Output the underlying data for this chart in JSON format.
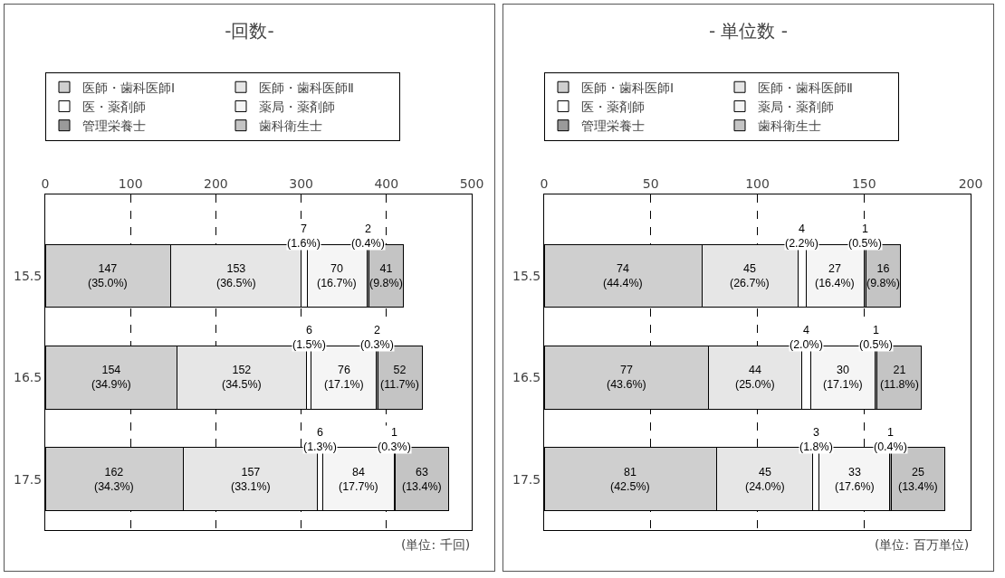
{
  "chart_data": [
    {
      "type": "bar",
      "orientation": "horizontal",
      "stacked": true,
      "title": "-回数-",
      "categories": [
        "15.5",
        "16.5",
        "17.5"
      ],
      "series": [
        {
          "name": "医師・歯科医師Ⅰ",
          "color": "#cfcfcf",
          "values": [
            147,
            154,
            162
          ],
          "value_labels": [
            "147\n(35.0%)",
            "154\n(34.9%)",
            "162\n(34.3%)"
          ]
        },
        {
          "name": "医師・歯科医師Ⅱ",
          "color": "#e6e6e6",
          "values": [
            153,
            152,
            157
          ],
          "value_labels": [
            "153\n(36.5%)",
            "152\n(34.5%)",
            "157\n(33.1%)"
          ]
        },
        {
          "name": "医・薬剤師",
          "color": "#ffffff",
          "values": [
            7,
            6,
            6
          ],
          "value_labels": [
            "7\n(1.6%)",
            "6\n(1.5%)",
            "6\n(1.3%)"
          ]
        },
        {
          "name": "薬局・薬剤師",
          "color": "#f5f5f5",
          "values": [
            70,
            76,
            84
          ],
          "value_labels": [
            "70\n(16.7%)",
            "76\n(17.1%)",
            "84\n(17.7%)"
          ]
        },
        {
          "name": "管理栄養士",
          "color": "#9a9a9a",
          "values": [
            2,
            2,
            1
          ],
          "value_labels": [
            "2\n(0.4%)",
            "2\n(0.3%)",
            "1\n(0.3%)"
          ]
        },
        {
          "name": "歯科衛生士",
          "color": "#c4c4c4",
          "values": [
            41,
            52,
            63
          ],
          "value_labels": [
            "41\n(9.8%)",
            "52\n(11.7%)",
            "63\n(13.4%)"
          ]
        }
      ],
      "xlim": [
        0,
        500
      ],
      "xticks": [
        0,
        100,
        200,
        300,
        400,
        500
      ],
      "grid": "x",
      "legend": "top",
      "annotations": [
        "(単位: 千回)"
      ]
    },
    {
      "type": "bar",
      "orientation": "horizontal",
      "stacked": true,
      "title": "- 単位数 -",
      "categories": [
        "15.5",
        "16.5",
        "17.5"
      ],
      "series": [
        {
          "name": "医師・歯科医師Ⅰ",
          "color": "#cfcfcf",
          "values": [
            74,
            77,
            81
          ],
          "value_labels": [
            "74\n(44.4%)",
            "77\n(43.6%)",
            "81\n(42.5%)"
          ]
        },
        {
          "name": "医師・歯科医師Ⅱ",
          "color": "#e6e6e6",
          "values": [
            45,
            44,
            45
          ],
          "value_labels": [
            "45\n(26.7%)",
            "44\n(25.0%)",
            "45\n(24.0%)"
          ]
        },
        {
          "name": "医・薬剤師",
          "color": "#ffffff",
          "values": [
            4,
            4,
            3
          ],
          "value_labels": [
            "4\n(2.2%)",
            "4\n(2.0%)",
            "3\n(1.8%)"
          ]
        },
        {
          "name": "薬局・薬剤師",
          "color": "#f5f5f5",
          "values": [
            27,
            30,
            33
          ],
          "value_labels": [
            "27\n(16.4%)",
            "30\n(17.1%)",
            "33\n(17.6%)"
          ]
        },
        {
          "name": "管理栄養士",
          "color": "#9a9a9a",
          "values": [
            1,
            1,
            1
          ],
          "value_labels": [
            "1\n(0.5%)",
            "1\n(0.5%)",
            "1\n(0.4%)"
          ]
        },
        {
          "name": "歯科衛生士",
          "color": "#c4c4c4",
          "values": [
            16,
            21,
            25
          ],
          "value_labels": [
            "16\n(9.8%)",
            "21\n(11.8%)",
            "25\n(13.4%)"
          ]
        }
      ],
      "xlim": [
        0,
        200
      ],
      "xticks": [
        0,
        50,
        100,
        150,
        200
      ],
      "grid": "x",
      "legend": "top",
      "annotations": [
        "(単位: 百万単位)"
      ]
    }
  ]
}
